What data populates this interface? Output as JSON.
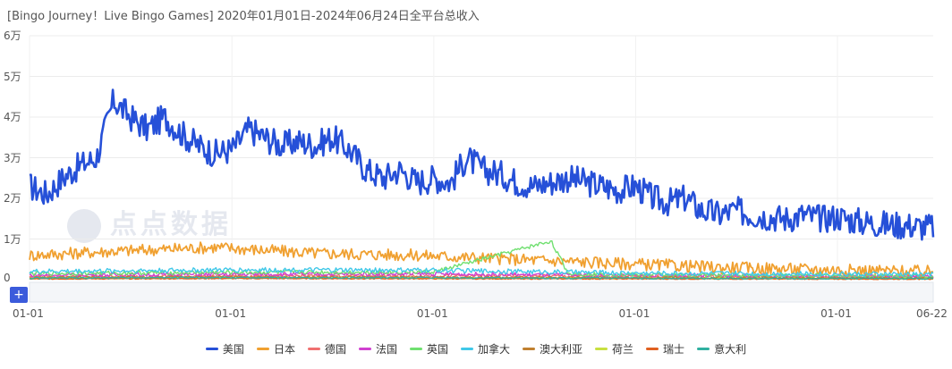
{
  "chart_data": {
    "type": "line",
    "title": "[Bingo Journey！Live Bingo Games]  2020年01月01日-2024年06月24日全平台总收入",
    "y_ticks": [
      "0",
      "1万",
      "2万",
      "3万",
      "4万",
      "5万",
      "6万"
    ],
    "ylim": [
      0,
      60000
    ],
    "x_ticks": [
      "01-01",
      "01-01",
      "01-01",
      "01-01",
      "01-01",
      "06-22"
    ],
    "x_range": [
      "2020-01-01",
      "2024-06-22"
    ],
    "grid": true,
    "legend_position": "bottom",
    "series": [
      {
        "name": "美国",
        "color": "#2650d8",
        "width": 2.6,
        "x": [
          "2020-01",
          "2020-02",
          "2020-03",
          "2020-04",
          "2020-05",
          "2020-06",
          "2020-07",
          "2020-08",
          "2020-09",
          "2020-10",
          "2020-11",
          "2020-12",
          "2021-01",
          "2021-02",
          "2021-03",
          "2021-04",
          "2021-05",
          "2021-06",
          "2021-07",
          "2021-08",
          "2021-09",
          "2021-10",
          "2021-11",
          "2021-12",
          "2022-01",
          "2022-02",
          "2022-03",
          "2022-04",
          "2022-05",
          "2022-06",
          "2022-07",
          "2022-08",
          "2022-09",
          "2022-10",
          "2022-11",
          "2022-12",
          "2023-01",
          "2023-02",
          "2023-03",
          "2023-04",
          "2023-05",
          "2023-06",
          "2023-07",
          "2023-08",
          "2023-09",
          "2023-10",
          "2023-11",
          "2023-12",
          "2024-01",
          "2024-02",
          "2024-03",
          "2024-04",
          "2024-05",
          "2024-06"
        ],
        "values": [
          23000,
          21000,
          25000,
          28000,
          30000,
          44000,
          40000,
          37000,
          40000,
          36000,
          33000,
          31000,
          32000,
          37000,
          35000,
          33000,
          34000,
          33000,
          35000,
          32000,
          27000,
          25000,
          27000,
          24000,
          25000,
          24000,
          30000,
          27000,
          26000,
          24000,
          23000,
          24000,
          25000,
          24000,
          23000,
          22000,
          23000,
          20000,
          19000,
          20000,
          17000,
          16000,
          17000,
          16000,
          15500,
          15000,
          16000,
          15000,
          15500,
          14500,
          14000,
          13500,
          13500,
          13000
        ],
        "jitter": 3500
      },
      {
        "name": "日本",
        "color": "#f0a030",
        "width": 1.8,
        "x": [
          "2020-01",
          "2020-06",
          "2020-12",
          "2021-06",
          "2021-12",
          "2022-06",
          "2022-12",
          "2023-06",
          "2023-12",
          "2024-06"
        ],
        "values": [
          6000,
          7000,
          8000,
          6500,
          6000,
          5000,
          4000,
          3000,
          2500,
          2000
        ],
        "jitter": 1500
      },
      {
        "name": "德国",
        "color": "#f07070",
        "width": 1.4,
        "x": [
          "2020-01",
          "2021-01",
          "2022-01",
          "2023-01",
          "2024-06"
        ],
        "values": [
          700,
          900,
          1000,
          800,
          600
        ],
        "jitter": 400
      },
      {
        "name": "法国",
        "color": "#d040d0",
        "width": 1.4,
        "x": [
          "2020-01",
          "2021-01",
          "2022-01",
          "2023-01",
          "2024-06"
        ],
        "values": [
          1100,
          1300,
          1400,
          1000,
          800
        ],
        "jitter": 500
      },
      {
        "name": "英国",
        "color": "#70e070",
        "width": 1.4,
        "x": [
          "2020-01",
          "2021-01",
          "2022-01",
          "2022-08",
          "2022-09",
          "2022-10",
          "2023-01",
          "2024-06"
        ],
        "values": [
          1500,
          1800,
          1900,
          9500,
          1500,
          1400,
          1200,
          900
        ],
        "jitter": 500
      },
      {
        "name": "加拿大",
        "color": "#40c8e8",
        "width": 1.4,
        "x": [
          "2020-01",
          "2021-01",
          "2022-01",
          "2023-01",
          "2024-06"
        ],
        "values": [
          2000,
          2400,
          2300,
          1600,
          1300
        ],
        "jitter": 600
      },
      {
        "name": "澳大利亚",
        "color": "#c08030",
        "width": 1.4,
        "x": [
          "2020-01",
          "2021-01",
          "2022-01",
          "2023-01",
          "2024-06"
        ],
        "values": [
          500,
          700,
          600,
          500,
          400
        ],
        "jitter": 250
      },
      {
        "name": "荷兰",
        "color": "#c8e040",
        "width": 1.4,
        "x": [
          "2020-01",
          "2021-01",
          "2022-01",
          "2023-01",
          "2024-06"
        ],
        "values": [
          300,
          400,
          350,
          300,
          250
        ],
        "jitter": 150
      },
      {
        "name": "瑞士",
        "color": "#e06020",
        "width": 1.4,
        "x": [
          "2020-01",
          "2021-01",
          "2022-01",
          "2023-01",
          "2024-06"
        ],
        "values": [
          200,
          300,
          250,
          200,
          150
        ],
        "jitter": 120
      },
      {
        "name": "意大利",
        "color": "#30b0a0",
        "width": 1.4,
        "x": [
          "2020-01",
          "2021-01",
          "2022-01",
          "2023-01",
          "2024-06"
        ],
        "values": [
          400,
          500,
          450,
          350,
          300
        ],
        "jitter": 200
      }
    ]
  },
  "watermark": {
    "text": "点点数据",
    "logo": "iD"
  },
  "zoom_button": {
    "label": "+"
  }
}
